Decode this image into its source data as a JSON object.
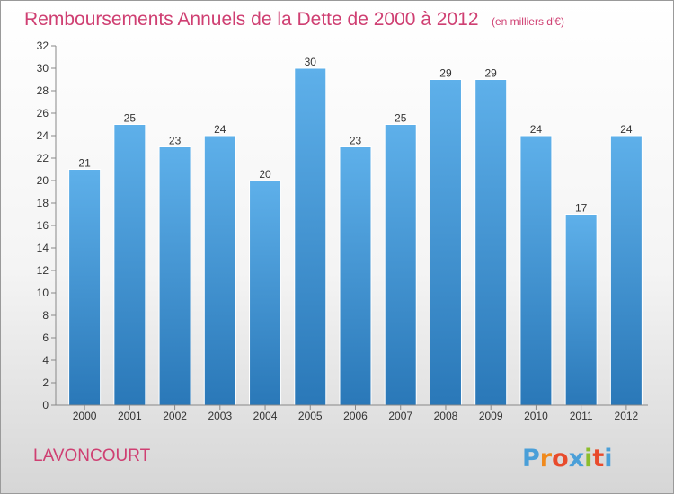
{
  "chart_data": {
    "type": "bar",
    "title": "Remboursements Annuels de la Dette de 2000 à 2012",
    "subtitle": "(en milliers d'€)",
    "categories": [
      "2000",
      "2001",
      "2002",
      "2003",
      "2004",
      "2005",
      "2006",
      "2007",
      "2008",
      "2009",
      "2010",
      "2011",
      "2012"
    ],
    "values": [
      21,
      25,
      23,
      24,
      20,
      30,
      23,
      25,
      29,
      29,
      24,
      17,
      24
    ],
    "ylim": [
      0,
      32
    ],
    "yticks": [
      0,
      2,
      4,
      6,
      8,
      10,
      12,
      14,
      16,
      18,
      20,
      22,
      24,
      26,
      28,
      30,
      32
    ],
    "xlabel": "",
    "ylabel": "",
    "grid": false,
    "legend": "none",
    "bar_color_top": "#5eb0ea",
    "bar_color_bottom": "#2a78b8"
  },
  "footer": {
    "place": "LAVONCOURT",
    "brand_letters": [
      "P",
      "r",
      "o",
      "x",
      "i",
      "t",
      "i"
    ],
    "brand_colors": [
      "#4a9fd8",
      "#f08a1c",
      "#e84b2c",
      "#4a9fd8",
      "#8cbd2b",
      "#e84b2c",
      "#4a9fd8"
    ]
  }
}
